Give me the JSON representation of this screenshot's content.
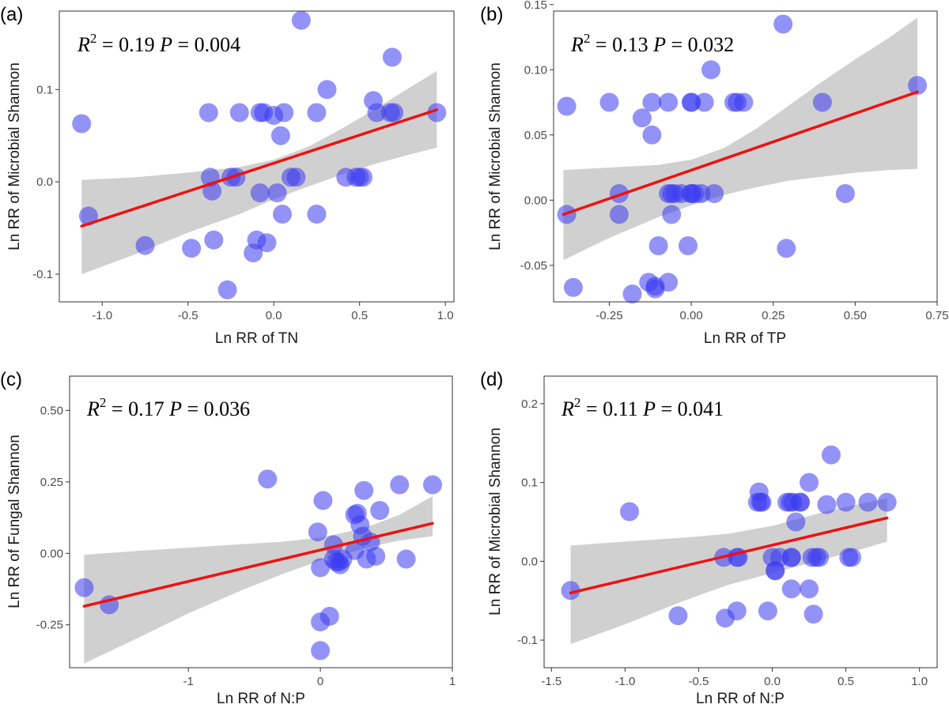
{
  "chart_data": [
    {
      "type": "scatter",
      "panel_label": "(a)",
      "stats": {
        "r2_label": "R",
        "r2_value": "0.19",
        "p_label": "P",
        "p_value": "0.004"
      },
      "xlabel": "Ln RR of TN",
      "ylabel": "Ln RR of Microbial Shannon",
      "xlim": [
        -1.25,
        1.05
      ],
      "ylim": [
        -0.13,
        0.185
      ],
      "xticks": [
        -1.0,
        -0.5,
        0.0,
        0.5,
        1.0
      ],
      "xtick_labels": [
        "-1.0",
        "-0.5",
        "0.0",
        "0.5",
        "1.0"
      ],
      "yticks": [
        -0.1,
        0.0,
        0.1
      ],
      "ytick_labels": [
        "-0.1",
        "0.0",
        "0.1"
      ],
      "colors": {
        "points": "#3b3bf0",
        "line": "#ee1111",
        "band": "#c8c8c8"
      },
      "fit": {
        "x": [
          -1.12,
          0.95
        ],
        "y": [
          -0.048,
          0.078
        ]
      },
      "ci_band": {
        "x": [
          -1.12,
          -0.8,
          -0.5,
          -0.2,
          0.0,
          0.2,
          0.4,
          0.6,
          0.8,
          0.95
        ],
        "upper": [
          0.002,
          0.005,
          0.01,
          0.016,
          0.024,
          0.038,
          0.058,
          0.08,
          0.103,
          0.12
        ],
        "lower": [
          -0.1,
          -0.078,
          -0.055,
          -0.035,
          -0.019,
          -0.005,
          0.008,
          0.02,
          0.03,
          0.037
        ]
      },
      "x": [
        -1.12,
        -1.08,
        -0.75,
        -0.48,
        -0.37,
        -0.36,
        -0.35,
        -0.38,
        -0.25,
        -0.22,
        -0.2,
        -0.27,
        -0.12,
        -0.1,
        -0.08,
        -0.08,
        -0.06,
        -0.04,
        0.0,
        0.02,
        0.04,
        0.05,
        0.06,
        0.1,
        0.13,
        0.16,
        0.25,
        0.25,
        0.31,
        0.42,
        0.48,
        0.5,
        0.52,
        0.58,
        0.6,
        0.68,
        0.69,
        0.7,
        0.95
      ],
      "y": [
        0.063,
        -0.037,
        -0.069,
        -0.072,
        0.005,
        -0.01,
        -0.063,
        0.075,
        0.005,
        0.005,
        0.075,
        -0.117,
        -0.077,
        -0.063,
        0.075,
        -0.012,
        0.075,
        -0.066,
        0.072,
        -0.012,
        0.05,
        -0.035,
        0.075,
        0.005,
        0.005,
        0.175,
        0.075,
        -0.035,
        0.1,
        0.005,
        0.005,
        0.005,
        0.005,
        0.088,
        0.075,
        0.075,
        0.135,
        0.075,
        0.075
      ]
    },
    {
      "type": "scatter",
      "panel_label": "(b)",
      "stats": {
        "r2_label": "R",
        "r2_value": "0.13",
        "p_label": "P",
        "p_value": "0.032"
      },
      "xlabel": "Ln RR of TP",
      "ylabel": "Ln RR of Microbial Shannon",
      "xlim": [
        -0.42,
        0.75
      ],
      "ylim": [
        -0.078,
        0.145
      ],
      "xticks": [
        -0.25,
        0.0,
        0.25,
        0.5,
        0.75
      ],
      "xtick_labels": [
        "-0.25",
        "0.00",
        "0.25",
        "0.50",
        "0.75"
      ],
      "yticks": [
        -0.05,
        0.0,
        0.05,
        0.1,
        0.15
      ],
      "ytick_labels": [
        "-0.05",
        "0.00",
        "0.05",
        "0.10",
        "0.15"
      ],
      "colors": {
        "points": "#3b3bf0",
        "line": "#ee1111",
        "band": "#c8c8c8"
      },
      "fit": {
        "x": [
          -0.39,
          0.69
        ],
        "y": [
          -0.011,
          0.083
        ]
      },
      "ci_band": {
        "x": [
          -0.39,
          -0.25,
          -0.1,
          0.0,
          0.1,
          0.2,
          0.3,
          0.4,
          0.5,
          0.6,
          0.69
        ],
        "upper": [
          0.023,
          0.025,
          0.027,
          0.031,
          0.04,
          0.055,
          0.073,
          0.091,
          0.108,
          0.124,
          0.14
        ],
        "lower": [
          -0.046,
          -0.029,
          -0.013,
          -0.004,
          0.004,
          0.01,
          0.015,
          0.018,
          0.021,
          0.023,
          0.024
        ]
      },
      "x": [
        -0.38,
        -0.38,
        -0.36,
        -0.25,
        -0.22,
        -0.22,
        -0.15,
        -0.13,
        -0.12,
        -0.12,
        -0.11,
        -0.11,
        -0.1,
        -0.18,
        -0.07,
        -0.07,
        -0.07,
        -0.06,
        -0.06,
        -0.05,
        -0.03,
        -0.01,
        0.0,
        0.0,
        0.0,
        0.0,
        0.01,
        0.03,
        0.04,
        0.06,
        0.07,
        0.14,
        0.13,
        0.16,
        0.28,
        0.29,
        0.4,
        0.47,
        0.69
      ],
      "y": [
        0.072,
        -0.011,
        -0.067,
        0.075,
        0.005,
        -0.011,
        0.063,
        -0.063,
        0.075,
        0.05,
        -0.068,
        -0.066,
        -0.035,
        -0.072,
        0.075,
        0.005,
        -0.063,
        0.005,
        -0.011,
        0.005,
        0.005,
        -0.035,
        0.005,
        0.075,
        0.005,
        0.075,
        0.005,
        0.005,
        0.075,
        0.1,
        0.005,
        0.075,
        0.075,
        0.075,
        0.135,
        -0.037,
        0.075,
        0.005,
        0.088
      ]
    },
    {
      "type": "scatter",
      "panel_label": "(c)",
      "stats": {
        "r2_label": "R",
        "r2_value": "0.17",
        "p_label": "P",
        "p_value": "0.036"
      },
      "xlabel": "Ln RR of N:P",
      "ylabel": "Ln RR of Fungal Shannon",
      "xlim": [
        -1.9,
        1.0
      ],
      "ylim": [
        -0.4,
        0.62
      ],
      "xticks": [
        -1.0,
        0.0,
        1.0
      ],
      "xtick_labels": [
        "-1",
        "0",
        "1"
      ],
      "yticks": [
        -0.25,
        0.0,
        0.25,
        0.5
      ],
      "ytick_labels": [
        "-0.25",
        "0.00",
        "0.25",
        "0.50"
      ],
      "colors": {
        "points": "#3b3bf0",
        "line": "#ee1111",
        "band": "#c8c8c8"
      },
      "fit": {
        "x": [
          -1.79,
          0.85
        ],
        "y": [
          -0.185,
          0.105
        ]
      },
      "ci_band": {
        "x": [
          -1.79,
          -1.4,
          -1.0,
          -0.6,
          -0.3,
          0.0,
          0.2,
          0.4,
          0.6,
          0.85
        ],
        "upper": [
          -0.005,
          0.008,
          0.02,
          0.032,
          0.04,
          0.055,
          0.075,
          0.1,
          0.135,
          0.2
        ],
        "lower": [
          -0.385,
          -0.3,
          -0.21,
          -0.13,
          -0.075,
          -0.025,
          0.0,
          0.025,
          0.045,
          0.06
        ]
      },
      "x": [
        -1.79,
        -1.6,
        -0.4,
        -0.02,
        0.0,
        0.0,
        0.0,
        0.02,
        0.07,
        0.1,
        0.1,
        0.12,
        0.14,
        0.15,
        0.17,
        0.26,
        0.26,
        0.28,
        0.3,
        0.32,
        0.33,
        0.35,
        0.38,
        0.42,
        0.45,
        0.6,
        0.65,
        0.85
      ],
      "y": [
        -0.12,
        -0.18,
        0.26,
        0.075,
        -0.05,
        -0.24,
        -0.34,
        0.185,
        -0.22,
        -0.02,
        0.03,
        -0.03,
        -0.03,
        -0.04,
        -0.02,
        0.135,
        0.01,
        0.14,
        0.1,
        0.06,
        0.22,
        -0.02,
        0.04,
        -0.01,
        0.15,
        0.24,
        -0.02,
        0.24
      ]
    },
    {
      "type": "scatter",
      "panel_label": "(d)",
      "stats": {
        "r2_label": "R",
        "r2_value": "0.11",
        "p_label": "P",
        "p_value": "0.041"
      },
      "xlabel": "Ln RR of N:P",
      "ylabel": "Ln RR of Microbial Shannon",
      "xlim": [
        -1.55,
        1.12
      ],
      "ylim": [
        -0.135,
        0.235
      ],
      "xticks": [
        -1.5,
        -1.0,
        -0.5,
        0.0,
        0.5,
        1.0
      ],
      "xtick_labels": [
        "-1.5",
        "-1.0",
        "-0.5",
        "0.0",
        "0.5",
        "1.0"
      ],
      "yticks": [
        -0.1,
        0.0,
        0.1,
        0.2
      ],
      "ytick_labels": [
        "-0.1",
        "0.0",
        "0.1",
        "0.2"
      ],
      "colors": {
        "points": "#3b3bf0",
        "line": "#ee1111",
        "band": "#c8c8c8"
      },
      "fit": {
        "x": [
          -1.37,
          0.78
        ],
        "y": [
          -0.04,
          0.055
        ]
      },
      "ci_band": {
        "x": [
          -1.37,
          -1.0,
          -0.6,
          -0.3,
          0.0,
          0.2,
          0.4,
          0.6,
          0.78
        ],
        "upper": [
          0.02,
          0.025,
          0.03,
          0.035,
          0.045,
          0.055,
          0.065,
          0.073,
          0.08
        ],
        "lower": [
          -0.105,
          -0.08,
          -0.05,
          -0.03,
          -0.015,
          -0.005,
          0.005,
          0.015,
          0.025
        ]
      },
      "x": [
        -1.37,
        -0.97,
        -0.64,
        -0.33,
        -0.32,
        -0.24,
        -0.24,
        -0.23,
        -0.03,
        -0.1,
        -0.09,
        -0.08,
        -0.07,
        0.0,
        0.02,
        0.02,
        0.05,
        0.1,
        0.12,
        0.13,
        0.13,
        0.13,
        0.14,
        0.16,
        0.19,
        0.19,
        0.25,
        0.25,
        0.27,
        0.28,
        0.3,
        0.32,
        0.37,
        0.4,
        0.5,
        0.52,
        0.54,
        0.65,
        0.78
      ],
      "y": [
        -0.037,
        0.063,
        -0.069,
        0.005,
        -0.072,
        0.005,
        -0.063,
        0.005,
        -0.063,
        0.075,
        0.088,
        0.075,
        0.075,
        0.005,
        -0.012,
        -0.012,
        0.005,
        0.075,
        0.075,
        0.005,
        -0.035,
        0.005,
        0.075,
        0.05,
        0.075,
        0.075,
        -0.035,
        0.1,
        0.005,
        -0.067,
        0.005,
        0.005,
        0.072,
        0.135,
        0.075,
        0.005,
        0.005,
        0.075,
        0.075
      ]
    }
  ]
}
